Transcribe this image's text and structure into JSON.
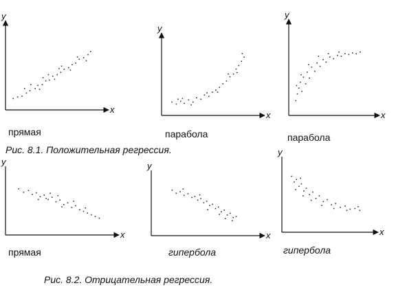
{
  "captions": {
    "fig1": "Рис. 8.1. Положительная регрессия.",
    "fig2": "Рис. 8.2. Отрицательная регрессия."
  },
  "chart_data": [
    {
      "type": "scatter",
      "label": "прямая",
      "xlabel": "x",
      "ylabel": "y",
      "points": [
        [
          0.5,
          1.2
        ],
        [
          1,
          1.4
        ],
        [
          1.5,
          1.5
        ],
        [
          2,
          1.9
        ],
        [
          2.4,
          2.2
        ],
        [
          3,
          2.5
        ],
        [
          3.3,
          2.9
        ],
        [
          3.8,
          3
        ],
        [
          4.2,
          3.5
        ],
        [
          4.6,
          3.6
        ],
        [
          5,
          4.1
        ],
        [
          5.5,
          4.3
        ],
        [
          5.9,
          4.6
        ],
        [
          6.3,
          5
        ],
        [
          6.8,
          5.2
        ],
        [
          7.2,
          5.6
        ],
        [
          7.6,
          5.8
        ],
        [
          8,
          6.3
        ],
        [
          8.5,
          6.5
        ],
        [
          9,
          6.9
        ],
        [
          9.3,
          7.3
        ],
        [
          2.5,
          3
        ],
        [
          3.5,
          2.4
        ],
        [
          4.5,
          4.3
        ],
        [
          5.2,
          3.7
        ],
        [
          6,
          5.4
        ],
        [
          7,
          4.9
        ],
        [
          7.8,
          6.6
        ],
        [
          8.8,
          6.1
        ],
        [
          1.8,
          2.5
        ],
        [
          3.9,
          3.9
        ],
        [
          5.7,
          5.1
        ]
      ]
    },
    {
      "type": "scatter",
      "label": "парабола",
      "xlabel": "x",
      "ylabel": "y",
      "points": [
        [
          0.8,
          1.6
        ],
        [
          1.3,
          1.3
        ],
        [
          1.8,
          1.7
        ],
        [
          2.2,
          1.4
        ],
        [
          2.7,
          1.9
        ],
        [
          3.2,
          1.6
        ],
        [
          3.6,
          2.2
        ],
        [
          4.1,
          2
        ],
        [
          4.5,
          2.6
        ],
        [
          5,
          2.4
        ],
        [
          5.4,
          3
        ],
        [
          5.8,
          3.3
        ],
        [
          6.2,
          3.7
        ],
        [
          6.6,
          4.2
        ],
        [
          7,
          4.6
        ],
        [
          7.4,
          5.2
        ],
        [
          7.8,
          5.6
        ],
        [
          8.1,
          6.3
        ],
        [
          8.4,
          6.8
        ],
        [
          8.7,
          7.4
        ],
        [
          9,
          8
        ],
        [
          2,
          2.1
        ],
        [
          3,
          1.2
        ],
        [
          4.8,
          2.9
        ],
        [
          6,
          3
        ],
        [
          7.2,
          5.6
        ],
        [
          8.2,
          5.8
        ],
        [
          8.8,
          8.5
        ],
        [
          1.5,
          2
        ]
      ]
    },
    {
      "type": "scatter",
      "label": "парабола",
      "xlabel": "x",
      "ylabel": "y",
      "points": [
        [
          0.5,
          1.5
        ],
        [
          0.7,
          2.3
        ],
        [
          0.9,
          3
        ],
        [
          1.1,
          3.7
        ],
        [
          1.3,
          2.6
        ],
        [
          1.5,
          4.3
        ],
        [
          1.8,
          3.5
        ],
        [
          2,
          4.9
        ],
        [
          2.3,
          4.2
        ],
        [
          2.6,
          5.5
        ],
        [
          3,
          5
        ],
        [
          3.3,
          6
        ],
        [
          3.7,
          5.6
        ],
        [
          4.1,
          6.4
        ],
        [
          4.5,
          6.1
        ],
        [
          5,
          6.7
        ],
        [
          5.5,
          6.5
        ],
        [
          6,
          6.9
        ],
        [
          6.5,
          6.8
        ],
        [
          7,
          7.1
        ],
        [
          7.5,
          7
        ],
        [
          8,
          7.2
        ],
        [
          8.5,
          7.1
        ],
        [
          9,
          7.3
        ],
        [
          0.6,
          3.3
        ],
        [
          1.2,
          4.6
        ],
        [
          2.2,
          5.8
        ],
        [
          3.5,
          6.8
        ],
        [
          4.8,
          7.1
        ],
        [
          6.2,
          7.3
        ]
      ]
    },
    {
      "type": "scatter",
      "label": "прямая",
      "xlabel": "x",
      "ylabel": "y",
      "points": [
        [
          1,
          7.8
        ],
        [
          1.5,
          7.2
        ],
        [
          2,
          7.5
        ],
        [
          2.4,
          6.8
        ],
        [
          2.8,
          7.1
        ],
        [
          3.2,
          6.4
        ],
        [
          3.6,
          6.7
        ],
        [
          4,
          5.9
        ],
        [
          4.4,
          6.3
        ],
        [
          4.8,
          5.5
        ],
        [
          5.2,
          5.8
        ],
        [
          5.6,
          5
        ],
        [
          6,
          5.3
        ],
        [
          6.4,
          4.5
        ],
        [
          6.8,
          4.8
        ],
        [
          7.2,
          4.1
        ],
        [
          7.6,
          3.8
        ],
        [
          8,
          3.5
        ],
        [
          8.4,
          3.2
        ],
        [
          8.8,
          2.9
        ],
        [
          9.2,
          2.6
        ],
        [
          3,
          5.9
        ],
        [
          4.2,
          7
        ],
        [
          5.4,
          4.6
        ],
        [
          6.6,
          5.6
        ],
        [
          7.8,
          4.4
        ],
        [
          5,
          6.6
        ],
        [
          3.8,
          6.1
        ]
      ]
    },
    {
      "type": "scatter",
      "label": "гипербола",
      "xlabel": "x",
      "ylabel": "y",
      "points": [
        [
          1.8,
          8.2
        ],
        [
          2.2,
          7.6
        ],
        [
          2.6,
          7.9
        ],
        [
          3,
          7.2
        ],
        [
          3.4,
          7.5
        ],
        [
          3.8,
          6.8
        ],
        [
          4.1,
          7
        ],
        [
          4.4,
          6.3
        ],
        [
          4.7,
          6.6
        ],
        [
          5,
          5.8
        ],
        [
          5.3,
          6.1
        ],
        [
          5.6,
          5.3
        ],
        [
          5.9,
          5.5
        ],
        [
          6.2,
          4.7
        ],
        [
          6.5,
          5
        ],
        [
          6.8,
          4.1
        ],
        [
          7.1,
          4.4
        ],
        [
          7.4,
          3.5
        ],
        [
          7.7,
          3.8
        ],
        [
          8,
          3
        ],
        [
          8.3,
          3.2
        ],
        [
          5.4,
          4.5
        ],
        [
          6.6,
          3.6
        ],
        [
          7.2,
          2.8
        ],
        [
          4.6,
          7.3
        ],
        [
          2.9,
          8.4
        ],
        [
          7.9,
          2.4
        ]
      ]
    },
    {
      "type": "scatter",
      "label": "гипербола",
      "xlabel": "x",
      "ylabel": "y",
      "points": [
        [
          0.8,
          8.5
        ],
        [
          1.1,
          7.6
        ],
        [
          1.4,
          8
        ],
        [
          1.7,
          6.9
        ],
        [
          2,
          7.3
        ],
        [
          2.3,
          6.2
        ],
        [
          2.6,
          6.6
        ],
        [
          3,
          5.6
        ],
        [
          3.4,
          6
        ],
        [
          3.8,
          5
        ],
        [
          4.2,
          5.4
        ],
        [
          4.7,
          4.5
        ],
        [
          5.2,
          4.8
        ],
        [
          5.7,
          4
        ],
        [
          6.2,
          4.2
        ],
        [
          6.8,
          3.6
        ],
        [
          7.4,
          3.8
        ],
        [
          8,
          3.3
        ],
        [
          8.6,
          3.4
        ],
        [
          9.2,
          3.1
        ],
        [
          1.3,
          6.4
        ],
        [
          2.2,
          5.4
        ],
        [
          3.2,
          4.7
        ],
        [
          4.5,
          3.9
        ],
        [
          6,
          3.4
        ],
        [
          7.6,
          3.1
        ],
        [
          9,
          3.7
        ],
        [
          1.9,
          8.2
        ]
      ]
    }
  ]
}
